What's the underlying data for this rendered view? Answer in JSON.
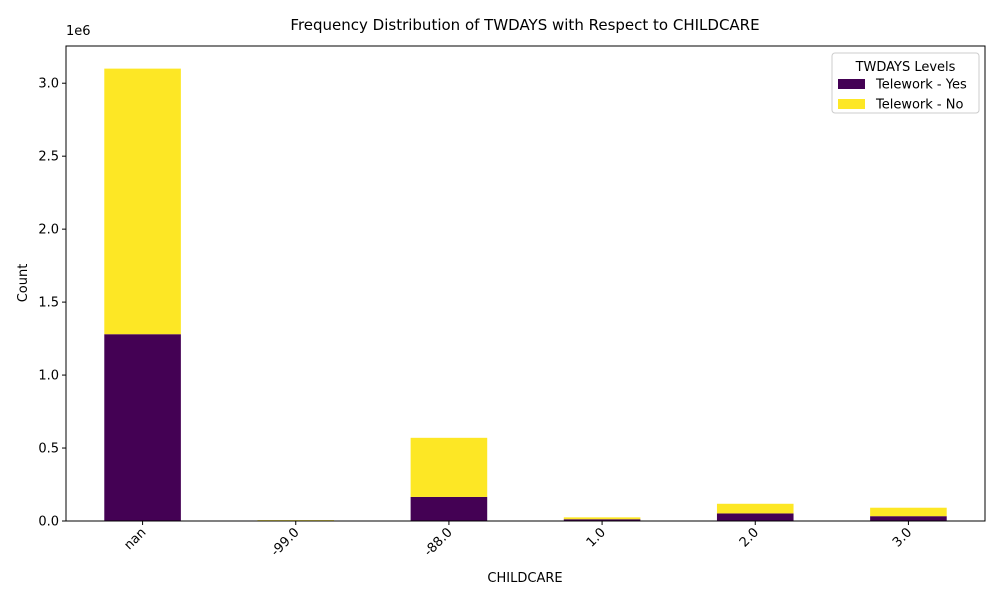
{
  "chart_data": {
    "type": "bar",
    "stacked": true,
    "title": "Frequency Distribution of TWDAYS with Respect to CHILDCARE",
    "xlabel": "CHILDCARE",
    "ylabel": "Count",
    "y_scale_label": "1e6",
    "categories": [
      "nan",
      "-99.0",
      "-88.0",
      "1.0",
      "2.0",
      "3.0"
    ],
    "series": [
      {
        "name": "Telework - Yes",
        "color": "#440154",
        "values": [
          1280000,
          2000,
          165000,
          12000,
          52000,
          33000
        ]
      },
      {
        "name": "Telework - No",
        "color": "#fde725",
        "values": [
          1820000,
          4000,
          405000,
          13000,
          66000,
          58000
        ]
      }
    ],
    "ylim": [
      0,
      3255000
    ],
    "yticks": [
      0,
      500000,
      1000000,
      1500000,
      2000000,
      2500000,
      3000000
    ],
    "ytick_labels": [
      "0.0",
      "0.5",
      "1.0",
      "1.5",
      "2.0",
      "2.5",
      "3.0"
    ],
    "legend": {
      "title": "TWDAYS Levels",
      "placement": "top-right"
    },
    "grid": false
  }
}
